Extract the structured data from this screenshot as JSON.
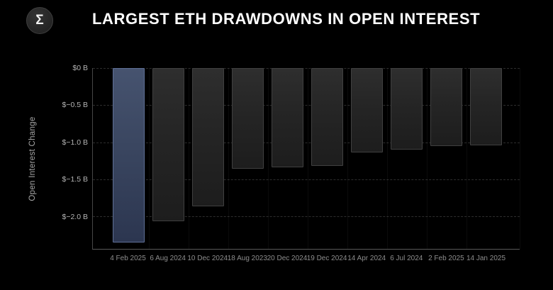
{
  "header": {
    "title": "LARGEST ETH DRAWDOWNS IN OPEN INTEREST",
    "logo_glyph": "Σ"
  },
  "chart_data": {
    "type": "bar",
    "title": "LARGEST ETH DRAWDOWNS IN OPEN INTEREST",
    "xlabel": "",
    "ylabel": "Open Interest Change",
    "unit": "$ billions",
    "ylim": [
      -2.44,
      0
    ],
    "grid": true,
    "legend": "none",
    "categories": [
      "4 Feb 2025",
      "6 Aug 2024",
      "10 Dec 2024",
      "18 Aug 2023",
      "20 Dec 2024",
      "19 Dec 2024",
      "14 Apr 2024",
      "6 Jul 2024",
      "2 Feb 2025",
      "14 Jan 2025"
    ],
    "values": [
      -2.35,
      -2.07,
      -1.87,
      -1.36,
      -1.34,
      -1.32,
      -1.14,
      -1.1,
      -1.05,
      -1.04
    ],
    "highlighted_index": 0,
    "y_ticks": [
      {
        "value": 0,
        "label": "$0 B"
      },
      {
        "value": -0.5,
        "label": "$−0.5 B"
      },
      {
        "value": -1.0,
        "label": "$−1.0 B"
      },
      {
        "value": -1.5,
        "label": "$−1.5 B"
      },
      {
        "value": -2.0,
        "label": "$−2.0 B"
      }
    ],
    "colors": {
      "background": "#000000",
      "bar_fill_top": "#2e2e2e",
      "bar_fill_bottom": "#1d1d1d",
      "bar_border": "#404040",
      "highlight_fill_top": "#46536f",
      "highlight_fill_bottom": "#2c3650",
      "highlight_border": "#5f7096",
      "gridline": "#2d2d2d",
      "tick_text": "#b3b3b3",
      "date_text": "#8d8d8d",
      "title_text": "#ffffff"
    }
  }
}
